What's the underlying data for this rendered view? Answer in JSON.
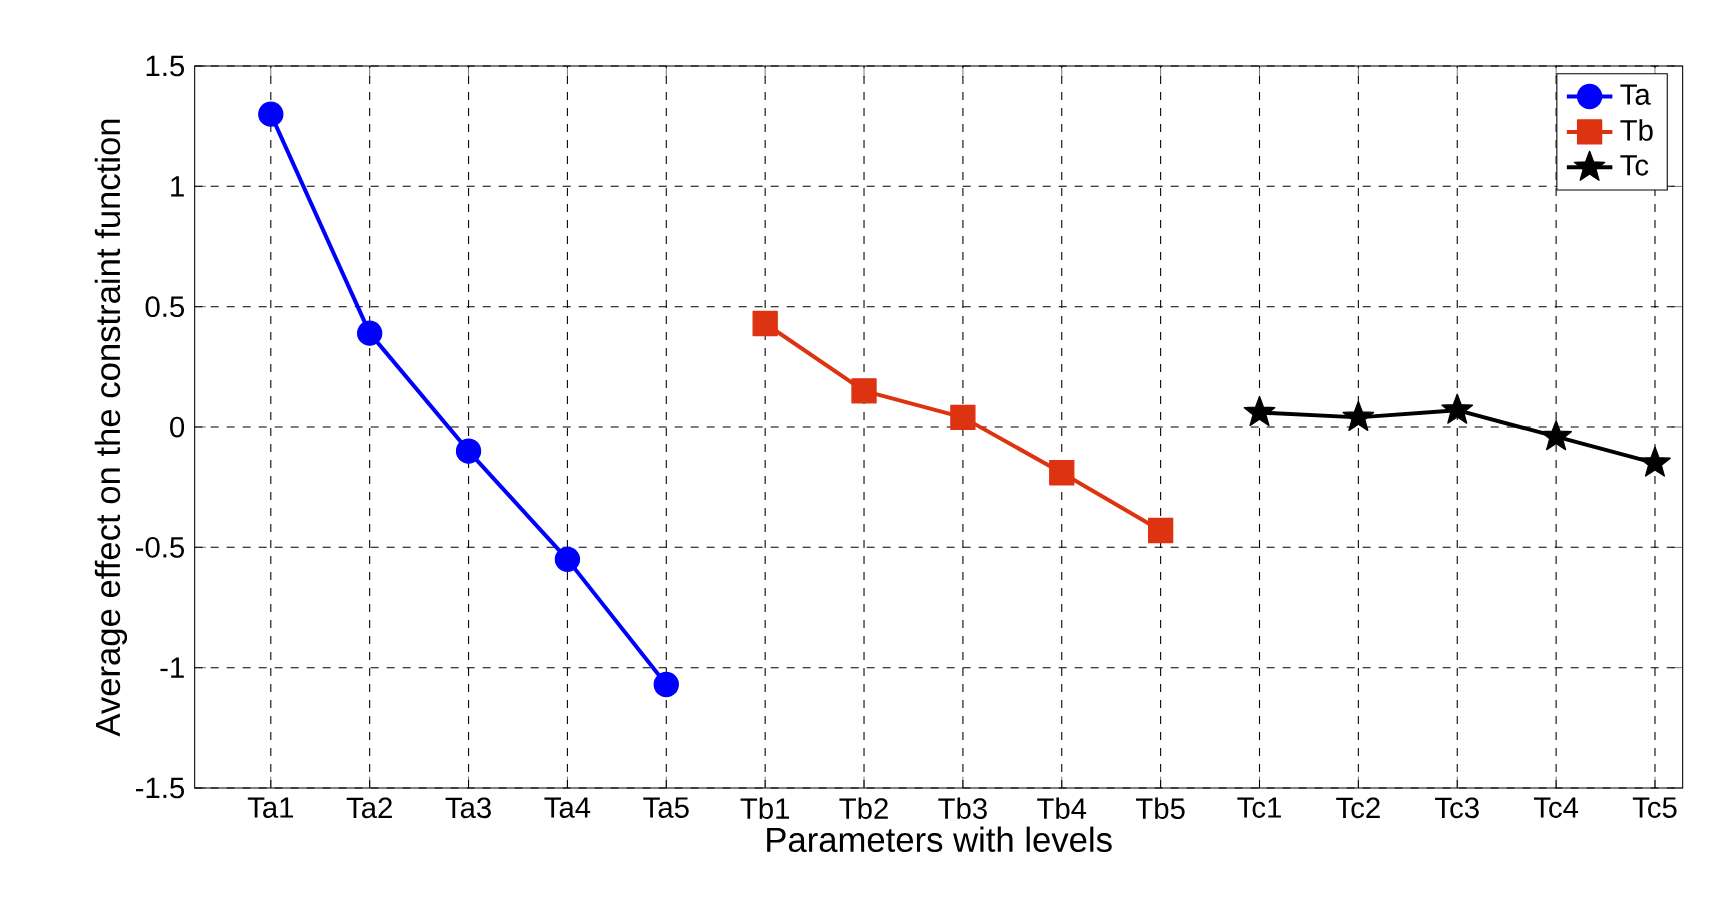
{
  "chart_data": {
    "type": "line",
    "xlabel": "Parameters with levels",
    "ylabel": "Average effect on the constraint function",
    "categories": [
      "Ta1",
      "Ta2",
      "Ta3",
      "Ta4",
      "Ta5",
      "Tb1",
      "Tb2",
      "Tb3",
      "Tb4",
      "Tb5",
      "Tc1",
      "Tc2",
      "Tc3",
      "Tc4",
      "Tc5"
    ],
    "series": [
      {
        "name": "Ta",
        "color": "#0000ff",
        "marker": "circle",
        "values": [
          1.3,
          0.39,
          -0.1,
          -0.55,
          -1.07,
          null,
          null,
          null,
          null,
          null,
          null,
          null,
          null,
          null,
          null
        ]
      },
      {
        "name": "Tb",
        "color": "#dd3311",
        "marker": "square",
        "values": [
          null,
          null,
          null,
          null,
          null,
          0.43,
          0.15,
          0.04,
          -0.19,
          -0.43,
          null,
          null,
          null,
          null,
          null
        ]
      },
      {
        "name": "Tc",
        "color": "#000000",
        "marker": "star",
        "values": [
          null,
          null,
          null,
          null,
          null,
          null,
          null,
          null,
          null,
          null,
          0.06,
          0.04,
          0.07,
          -0.04,
          -0.15
        ]
      }
    ],
    "ylim": [
      -1.5,
      1.5
    ],
    "yticks": [
      -1.5,
      -1,
      -0.5,
      0,
      0.5,
      1,
      1.5
    ],
    "grid": true,
    "legend": "top right",
    "line_style": "solid"
  }
}
